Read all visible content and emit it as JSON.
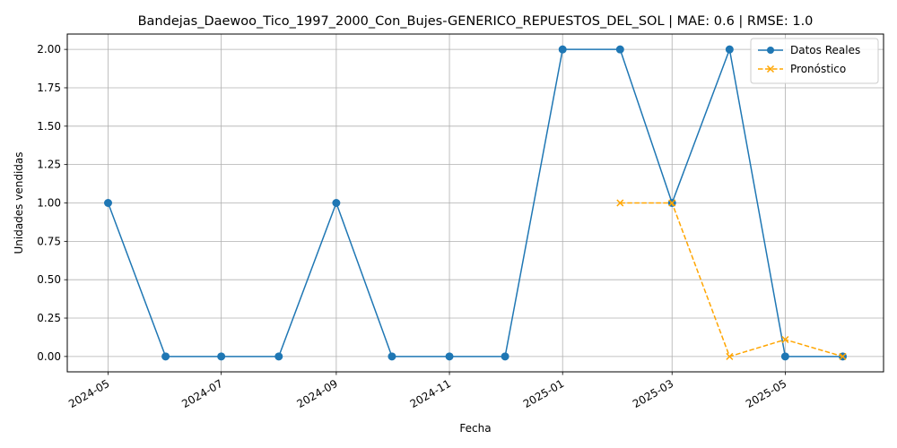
{
  "chart_data": {
    "type": "line",
    "title": "Bandejas_Daewoo_Tico_1997_2000_Con_Bujes-GENERICO_REPUESTOS_DEL_SOL | MAE: 0.6 | RMSE: 1.0",
    "xlabel": "Fecha",
    "ylabel": "Unidades vendidas",
    "x_ticks": [
      "2024-05",
      "2024-07",
      "2024-09",
      "2024-11",
      "2025-01",
      "2025-03",
      "2025-05"
    ],
    "y_ticks": [
      "0.00",
      "0.25",
      "0.50",
      "0.75",
      "1.00",
      "1.25",
      "1.50",
      "1.75",
      "2.00"
    ],
    "ylim": [
      -0.1,
      2.1
    ],
    "xlim": [
      "2024-04-09",
      "2025-06-23"
    ],
    "grid": true,
    "legend_position": "upper right",
    "series": [
      {
        "name": "Datos Reales",
        "color": "#1f77b4",
        "style": "solid",
        "marker": "circle",
        "x": [
          "2024-05-01",
          "2024-06-01",
          "2024-07-01",
          "2024-08-01",
          "2024-09-01",
          "2024-10-01",
          "2024-11-01",
          "2024-12-01",
          "2025-01-01",
          "2025-02-01",
          "2025-03-01",
          "2025-04-01",
          "2025-05-01",
          "2025-06-01"
        ],
        "values": [
          1,
          0,
          0,
          0,
          1,
          0,
          0,
          0,
          2,
          2,
          1,
          2,
          0,
          0
        ]
      },
      {
        "name": "Pronóstico",
        "color": "#ffa500",
        "style": "dashed",
        "marker": "x",
        "x": [
          "2025-02-01",
          "2025-03-01",
          "2025-04-01",
          "2025-05-01",
          "2025-06-01"
        ],
        "values": [
          1.0,
          1.0,
          0.0,
          0.11,
          0.0
        ]
      }
    ]
  }
}
